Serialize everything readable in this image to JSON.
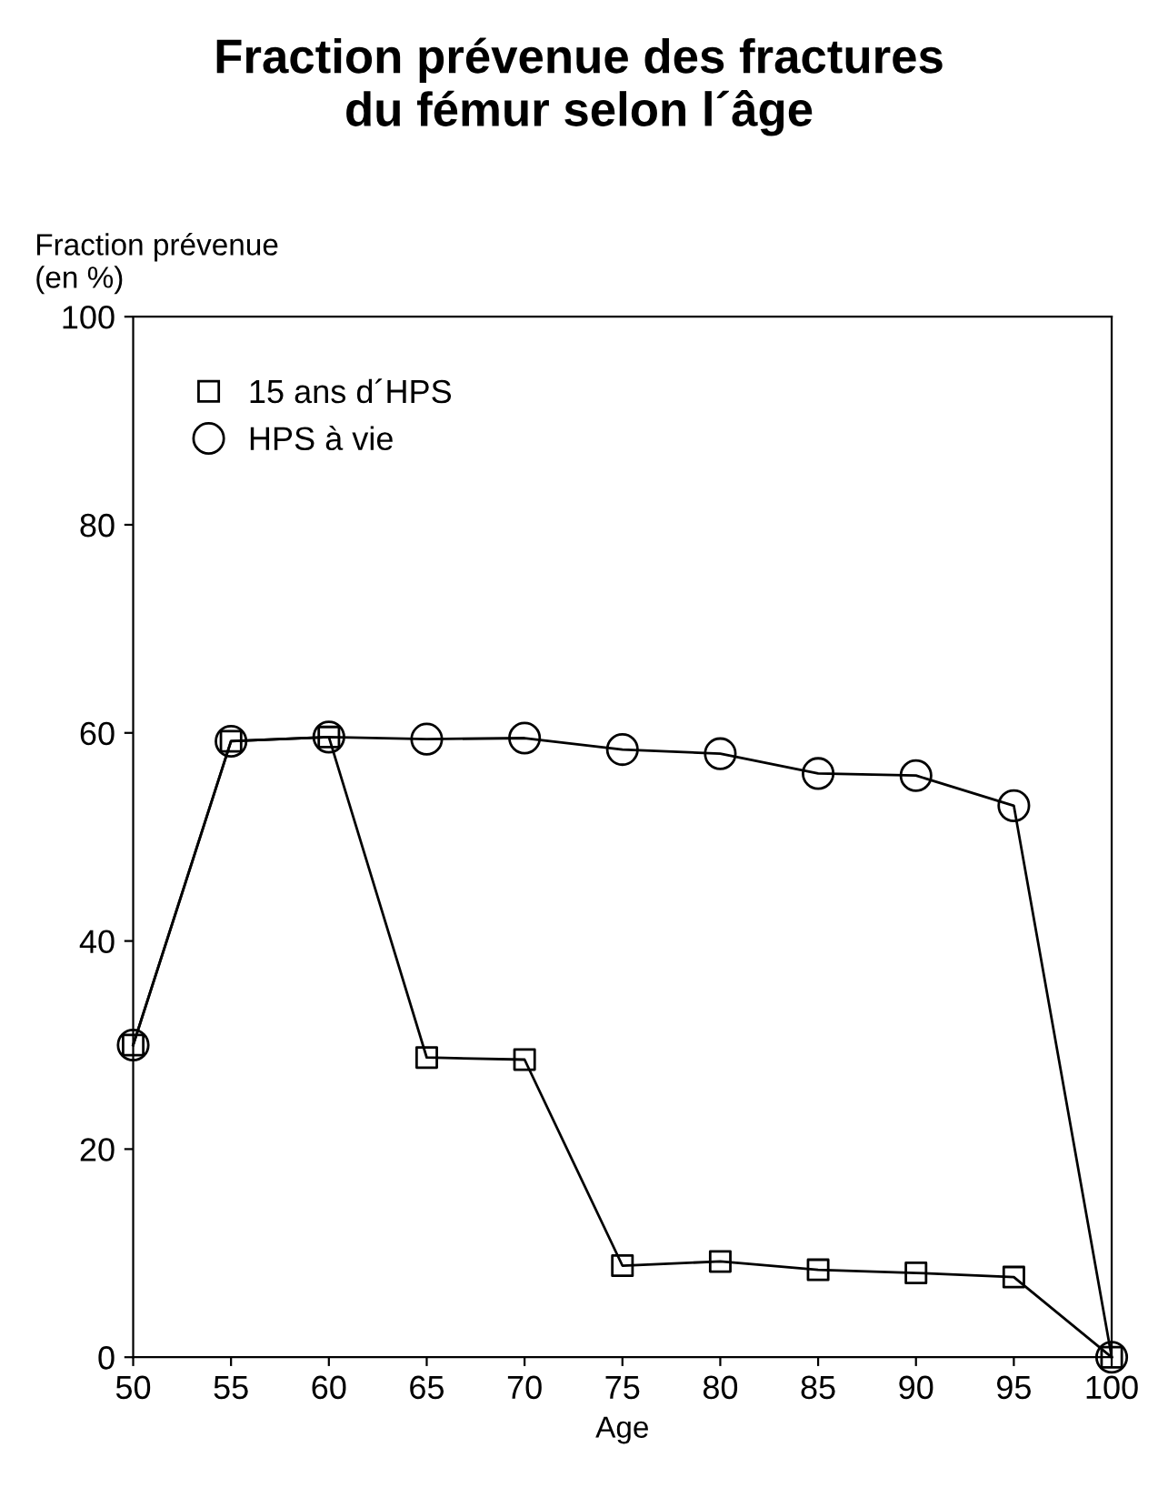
{
  "chart_data": {
    "type": "line",
    "title": "Fraction prévenue des fractures\ndu fémur selon l´âge",
    "xlabel": "Age",
    "ylabel": "Fraction prévenue\n(en %)",
    "x": [
      50,
      55,
      60,
      65,
      70,
      75,
      80,
      85,
      90,
      95,
      100
    ],
    "series": [
      {
        "name": "15 ans d´HPS",
        "color": "#000000",
        "marker": "square",
        "values": [
          30,
          59.2,
          59.6,
          28.8,
          28.6,
          8.8,
          9.2,
          8.4,
          8.1,
          7.7,
          0
        ]
      },
      {
        "name": "HPS à vie",
        "color": "#000000",
        "marker": "circle",
        "values": [
          30,
          59.2,
          59.6,
          59.4,
          59.5,
          58.4,
          58,
          56.1,
          55.9,
          53,
          0
        ]
      }
    ],
    "xlim": [
      50,
      100
    ],
    "xticks": [
      50,
      55,
      60,
      65,
      70,
      75,
      80,
      85,
      90,
      95,
      100
    ],
    "ylim": [
      0,
      100
    ],
    "yticks": [
      0,
      20,
      40,
      60,
      80,
      100
    ],
    "grid": false,
    "legend": "top left",
    "line_style": "solid"
  }
}
